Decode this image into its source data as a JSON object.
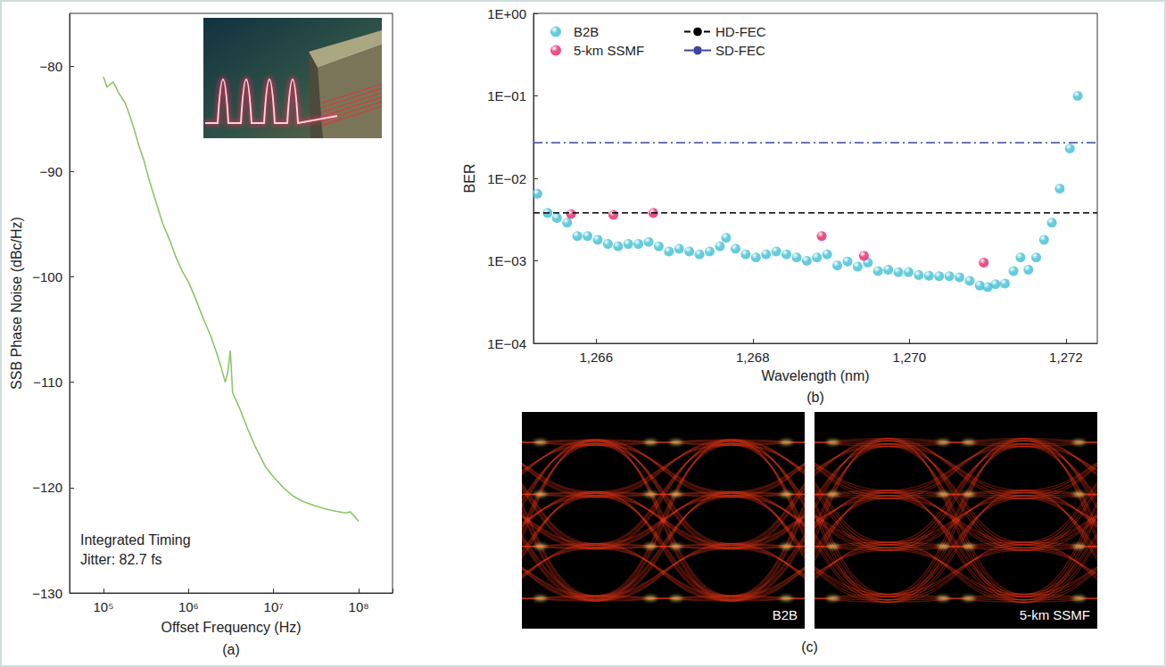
{
  "chart_data": [
    {
      "type": "line",
      "caption": "(a)",
      "x_label": "Offset Frequency (Hz)",
      "y_label": "SSB Phase Noise (dBc/Hz)",
      "log": "x",
      "xlim": [
        40000,
        250000000
      ],
      "xticks": [
        {
          "value": 100000,
          "label": "10⁵"
        },
        {
          "value": 1000000,
          "label": "10⁶"
        },
        {
          "value": 10000000,
          "label": "10⁷"
        },
        {
          "value": 100000000,
          "label": "10⁸"
        }
      ],
      "ylim": [
        -130,
        -75
      ],
      "yticks": [
        {
          "value": -130,
          "label": "−130"
        },
        {
          "value": -120,
          "label": "−120"
        },
        {
          "value": -110,
          "label": "−110"
        },
        {
          "value": -100,
          "label": "−100"
        },
        {
          "value": -90,
          "label": "−90"
        },
        {
          "value": -80,
          "label": "−80"
        }
      ],
      "grid": false,
      "color": "#8cc66a",
      "x": [
        100000,
        110000,
        130000,
        150000,
        180000,
        200000,
        230000,
        260000,
        300000,
        350000,
        400000,
        500000,
        600000,
        700000,
        850000,
        1000000,
        1200000,
        1500000,
        1800000,
        2100000,
        2400000,
        2700000,
        2900000,
        3100000,
        3300000,
        4000000,
        5000000,
        6000000,
        8000000,
        10000000,
        13000000,
        17000000,
        22000000,
        30000000,
        40000000,
        50000000,
        70000000,
        80000000,
        100000000
      ],
      "values": [
        -81,
        -82,
        -81.5,
        -82.5,
        -83.5,
        -84.5,
        -86,
        -87.5,
        -89,
        -91,
        -92.5,
        -95,
        -96.5,
        -98,
        -99.5,
        -100.5,
        -102,
        -104,
        -105.5,
        -107,
        -108.5,
        -110,
        -109,
        -107,
        -111,
        -112.5,
        -114.5,
        -116,
        -118,
        -119,
        -120,
        -120.8,
        -121.3,
        -121.7,
        -122,
        -122.2,
        -122.4,
        -122.3,
        -123.2
      ],
      "annotation": [
        "Integrated Timing",
        "Jitter: 82.7 fs"
      ]
    },
    {
      "type": "scatter",
      "caption": "(b)",
      "x_label": "Wavelength (nm)",
      "y_label": "BER",
      "log": "y",
      "xlim": [
        1265.2,
        1272.4
      ],
      "xticks": [
        {
          "value": 1266,
          "label": "1,266"
        },
        {
          "value": 1268,
          "label": "1,268"
        },
        {
          "value": 1270,
          "label": "1,270"
        },
        {
          "value": 1272,
          "label": "1,272"
        }
      ],
      "ylim": [
        0.0001,
        1
      ],
      "yticks": [
        {
          "value": 0.0001,
          "label": "1E−04"
        },
        {
          "value": 0.001,
          "label": "1E−03"
        },
        {
          "value": 0.01,
          "label": "1E−02"
        },
        {
          "value": 0.1,
          "label": "1E−01"
        },
        {
          "value": 1,
          "label": "1E+00"
        }
      ],
      "grid": false,
      "legend": "upper left",
      "series": [
        {
          "name": "B2B",
          "type": "scatter",
          "marker": "circle",
          "color": "#3fbfd3",
          "x": [
            1265.25,
            1265.38,
            1265.5,
            1265.63,
            1265.76,
            1265.89,
            1266.02,
            1266.15,
            1266.28,
            1266.41,
            1266.54,
            1266.67,
            1266.8,
            1266.93,
            1267.06,
            1267.19,
            1267.32,
            1267.45,
            1267.58,
            1267.66,
            1267.78,
            1267.91,
            1268.04,
            1268.17,
            1268.3,
            1268.43,
            1268.56,
            1268.69,
            1268.82,
            1268.95,
            1269.08,
            1269.21,
            1269.34,
            1269.47,
            1269.6,
            1269.73,
            1269.86,
            1269.99,
            1270.12,
            1270.25,
            1270.38,
            1270.51,
            1270.64,
            1270.77,
            1270.9,
            1271.0,
            1271.1,
            1271.22,
            1271.33,
            1271.42,
            1271.52,
            1271.62,
            1271.72,
            1271.82,
            1271.92,
            1272.05,
            1272.15
          ],
          "values": [
            0.0065,
            0.0038,
            0.0033,
            0.0029,
            0.002,
            0.002,
            0.0018,
            0.0016,
            0.0015,
            0.0016,
            0.0016,
            0.0017,
            0.0015,
            0.0013,
            0.0014,
            0.0013,
            0.0012,
            0.0013,
            0.0015,
            0.0019,
            0.0014,
            0.0012,
            0.0011,
            0.0012,
            0.0013,
            0.0012,
            0.0011,
            0.001,
            0.0011,
            0.0012,
            0.00088,
            0.00098,
            0.00085,
            0.00095,
            0.00075,
            0.00078,
            0.00073,
            0.00073,
            0.00067,
            0.00066,
            0.00065,
            0.00065,
            0.00063,
            0.00057,
            0.0005,
            0.00048,
            0.00052,
            0.00053,
            0.00075,
            0.0011,
            0.00078,
            0.0011,
            0.0018,
            0.0029,
            0.0075,
            0.023,
            0.1
          ]
        },
        {
          "name": "5-km SSMF",
          "type": "scatter",
          "marker": "circle",
          "color": "#e3266a",
          "x": [
            1265.68,
            1266.22,
            1266.73,
            1268.88,
            1269.42,
            1270.95
          ],
          "values": [
            0.0037,
            0.0036,
            0.0038,
            0.002,
            0.00115,
            0.00095
          ]
        },
        {
          "name": "HD-FEC",
          "type": "line",
          "line_style": "dashed",
          "color": "#000000",
          "value": 0.0038
        },
        {
          "name": "SD-FEC",
          "type": "line",
          "line_style": "dashdot",
          "color": "#3a46a0",
          "value": 0.027
        }
      ]
    }
  ],
  "eye_diagrams": {
    "caption": "(c)",
    "panels": [
      {
        "label": "B2B"
      },
      {
        "label": "5-km SSMF"
      }
    ]
  }
}
